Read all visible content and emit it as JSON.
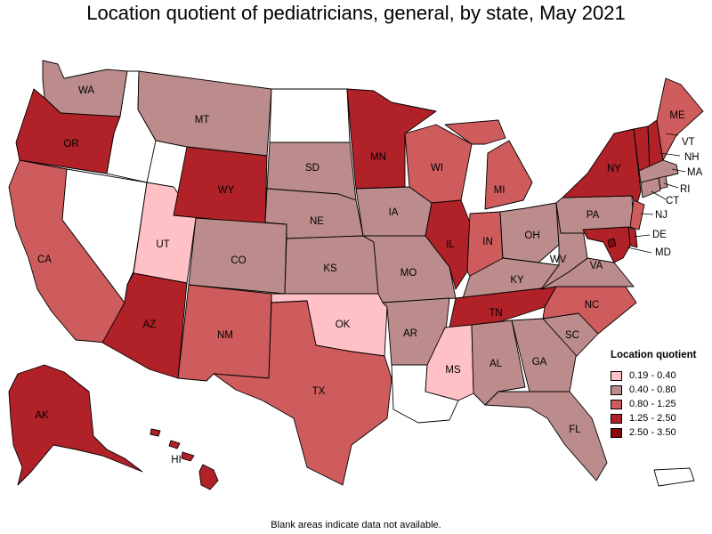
{
  "title": "Location quotient of pediatricians, general, by state, May 2021",
  "footnote": "Blank areas indicate data not available.",
  "legend": {
    "title": "Location quotient",
    "items": [
      {
        "label": "0.19 - 0.40",
        "color": "#ffc0c6"
      },
      {
        "label": "0.40 - 0.80",
        "color": "#bc8c8c"
      },
      {
        "label": "0.80 - 1.25",
        "color": "#cf5c5c"
      },
      {
        "label": "1.25 - 2.50",
        "color": "#b02128"
      },
      {
        "label": "2.50 - 3.50",
        "color": "#8b0710"
      }
    ]
  },
  "no_data_color": "#ffffff",
  "chart_data": {
    "type": "choropleth",
    "classes": [
      "0.19 - 0.40",
      "0.40 - 0.80",
      "0.80 - 1.25",
      "1.25 - 2.50",
      "2.50 - 3.50"
    ],
    "states": {
      "WA": 1,
      "OR": 3,
      "CA": 2,
      "ID": null,
      "NV": null,
      "UT": 0,
      "AZ": 3,
      "MT": 1,
      "WY": 3,
      "CO": 1,
      "NM": 2,
      "ND": null,
      "SD": 1,
      "NE": 1,
      "KS": 1,
      "OK": 0,
      "TX": 2,
      "MN": 3,
      "IA": 1,
      "MO": 1,
      "AR": 1,
      "LA": null,
      "WI": 2,
      "IL": 3,
      "MI": 2,
      "IN": 2,
      "OH": 1,
      "KY": 1,
      "TN": 3,
      "MS": 0,
      "AL": 1,
      "GA": 1,
      "FL": 1,
      "SC": 1,
      "NC": 2,
      "VA": 1,
      "WV": 1,
      "PA": 1,
      "NY": 3,
      "VT": 3,
      "NH": 3,
      "ME": 2,
      "MA": 1,
      "RI": 1,
      "CT": 1,
      "NJ": 2,
      "DE": 3,
      "MD": 3,
      "DC": 4,
      "AK": 3,
      "HI": 3,
      "PR": null
    },
    "state_labels": [
      "WA",
      "OR",
      "CA",
      "UT",
      "AZ",
      "MT",
      "WY",
      "CO",
      "NM",
      "SD",
      "NE",
      "KS",
      "OK",
      "TX",
      "MN",
      "IA",
      "MO",
      "AR",
      "WI",
      "IL",
      "MI",
      "IN",
      "OH",
      "KY",
      "TN",
      "MS",
      "AL",
      "GA",
      "FL",
      "SC",
      "NC",
      "VA",
      "WV",
      "PA",
      "NY",
      "ME",
      "VT",
      "NH",
      "MA",
      "RI",
      "CT",
      "NJ",
      "DE",
      "MD",
      "AK",
      "HI"
    ]
  }
}
